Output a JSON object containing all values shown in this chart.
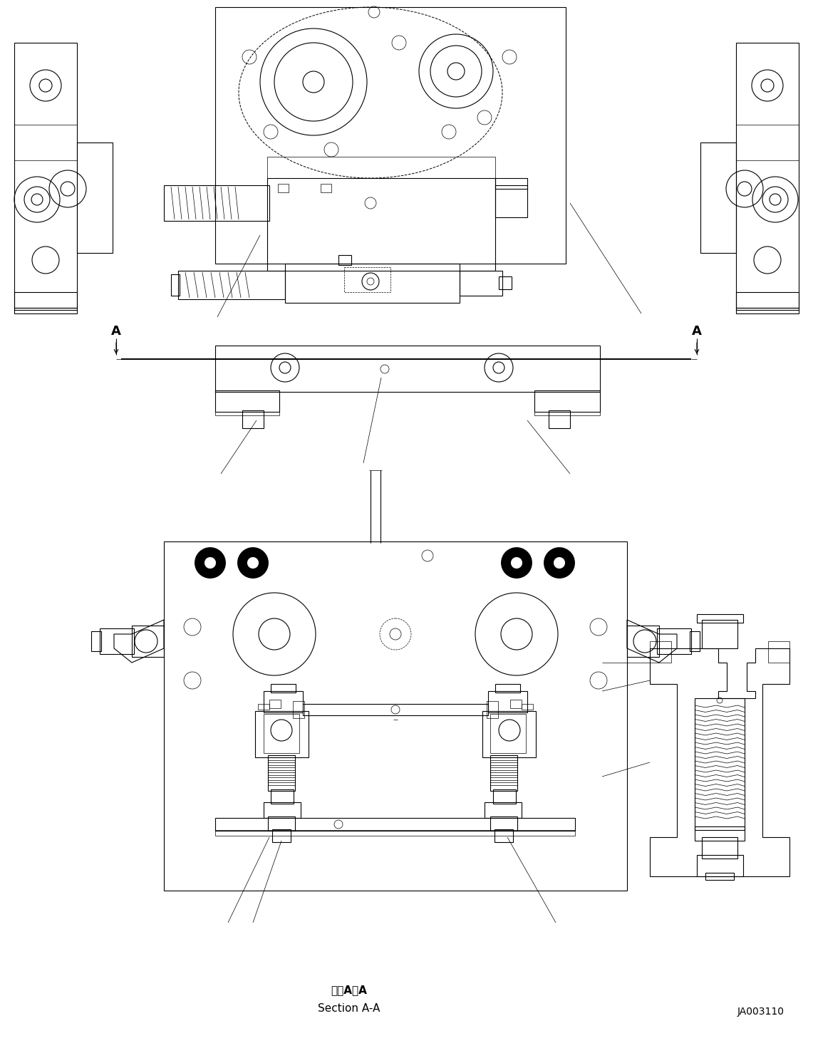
{
  "bg_color": "#ffffff",
  "line_color": "#000000",
  "line_width": 0.8,
  "thick_lw": 1.4,
  "thin_lw": 0.5,
  "fig_width": 11.41,
  "fig_height": 14.92,
  "bottom_label1": "断面A－A",
  "bottom_label2": "Section A-A",
  "drawing_number": "JA003110"
}
